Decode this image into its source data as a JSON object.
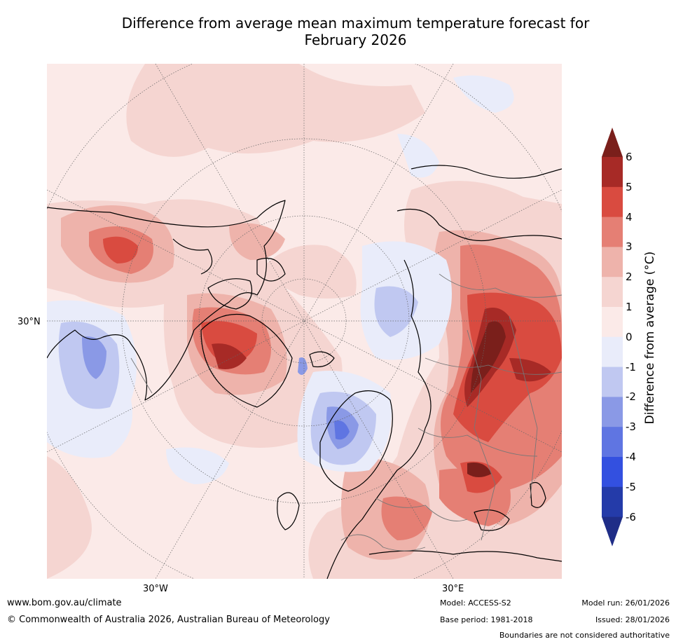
{
  "title": {
    "line1": "Difference from average mean maximum temperature forecast for",
    "line2": "February 2026"
  },
  "map": {
    "projection_note": "North polar stereographic view of Northern Hemisphere",
    "grid_labels": {
      "left": "30°N",
      "bottom_left": "30°W",
      "bottom_right": "30°E"
    }
  },
  "colorbar": {
    "label": "Difference from average (°C)",
    "ticks": [
      "6",
      "5",
      "4",
      "3",
      "2",
      "1",
      "0",
      "-1",
      "-2",
      "-3",
      "-4",
      "-5",
      "-6"
    ],
    "bins": [
      {
        "range": "5 to 6",
        "color": "#a72a26"
      },
      {
        "range": "4 to 5",
        "color": "#d94b40"
      },
      {
        "range": "3 to 4",
        "color": "#e57f74"
      },
      {
        "range": "2 to 3",
        "color": "#eeb3ab"
      },
      {
        "range": "1 to 2",
        "color": "#f5d5d1"
      },
      {
        "range": "0 to 1",
        "color": "#fbeae8"
      },
      {
        "range": "-1 to 0",
        "color": "#e9ecfa"
      },
      {
        "range": "-2 to -1",
        "color": "#c0c8f1"
      },
      {
        "range": "-3 to -2",
        "color": "#8a99e6"
      },
      {
        "range": "-4 to -3",
        "color": "#5f75e2"
      },
      {
        "range": "-5 to -4",
        "color": "#3350e0"
      },
      {
        "range": "-6 to -5",
        "color": "#243ba9"
      }
    ],
    "over_color": "#7a1f1b",
    "under_color": "#1f2d87"
  },
  "footer": {
    "url": "www.bom.gov.au/climate",
    "copyright": "© Commonwealth of Australia 2026, Australian Bureau of Meteorology",
    "model": "Model: ACCESS-S2",
    "base_period": "Base period: 1981-2018",
    "model_run": "Model run: 26/01/2026",
    "issued": "Issued: 28/01/2026",
    "disclaimer": "Boundaries are not considered authoritative"
  }
}
